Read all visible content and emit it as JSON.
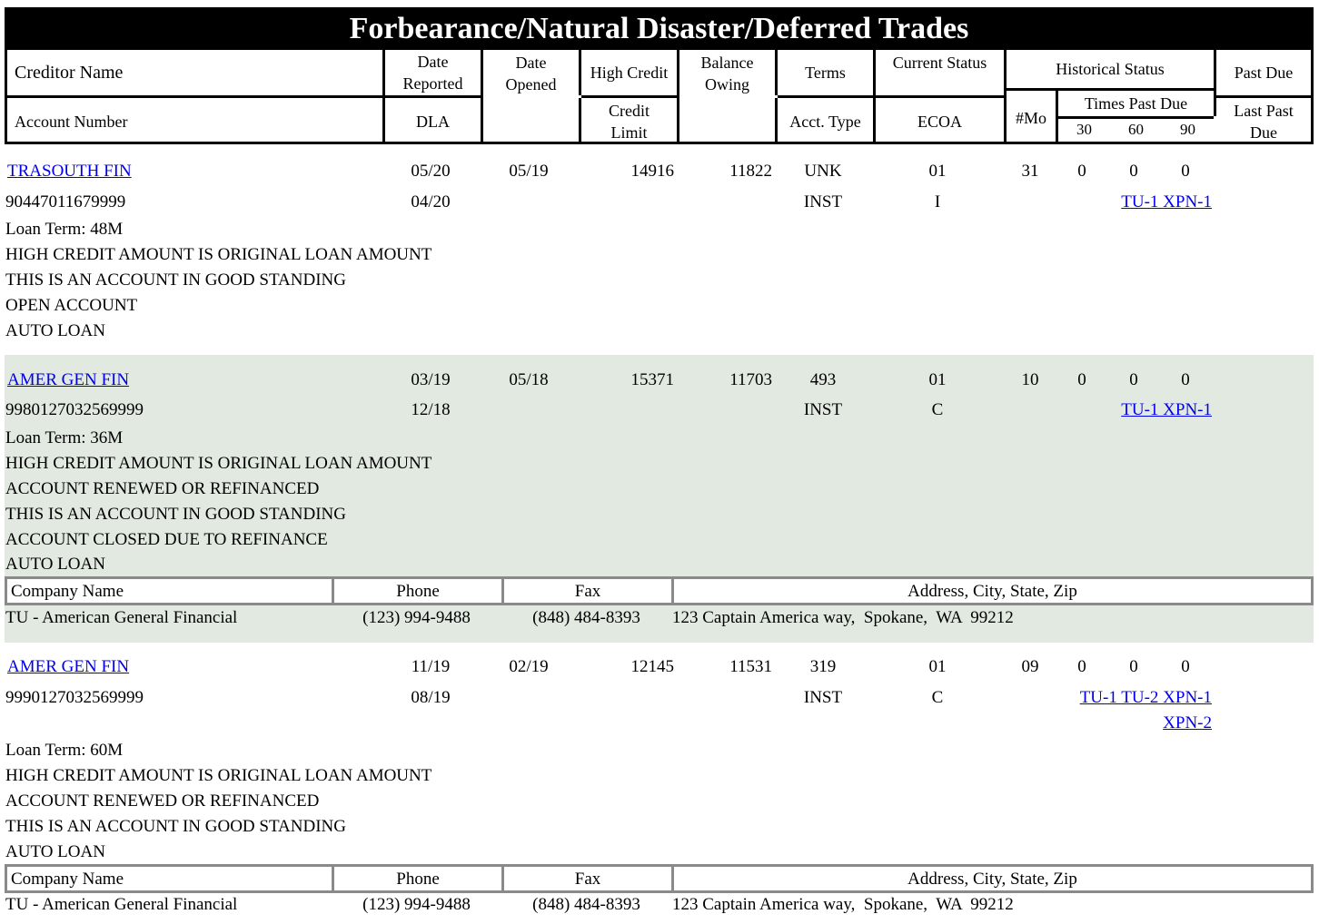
{
  "title": "Forbearance/Natural Disaster/Deferred Trades",
  "header": {
    "creditor_name": "Creditor Name",
    "account_number": "Account Number",
    "date_reported_1": "Date",
    "date_reported_2": "Reported",
    "dla": "DLA",
    "date_opened_1": "Date",
    "date_opened_2": "Opened",
    "high_credit": "High Credit",
    "credit_limit_1": "Credit",
    "credit_limit_2": "Limit",
    "balance_owing_1": "Balance",
    "balance_owing_2": "Owing",
    "terms": "Terms",
    "acct_type": "Acct. Type",
    "current_status": "Current Status",
    "ecoa": "ECOA",
    "historical_status": "Historical Status",
    "num_mo": "#Mo",
    "times_past_due": "Times Past Due",
    "d30": "30",
    "d60": "60",
    "d90": "90",
    "past_due": "Past Due",
    "last_past_1": "Last Past",
    "last_past_2": "Due"
  },
  "company_header": {
    "name": "Company Name",
    "phone": "Phone",
    "fax": "Fax",
    "address": "Address, City, State, Zip"
  },
  "trades": [
    {
      "creditor": "TRASOUTH FIN",
      "account": "90447011679999",
      "date_reported": "05/20",
      "dla": "04/20",
      "date_opened": "05/19",
      "high_credit": "14916",
      "balance": "11822",
      "terms": "UNK",
      "acct_type": "INST",
      "status": "01",
      "ecoa": "I",
      "mo": "31",
      "p30": "0",
      "p60": "0",
      "p90": "0",
      "bureaus": "TU-1 XPN-1",
      "notes": [
        "Loan Term: 48M",
        "HIGH CREDIT AMOUNT IS ORIGINAL LOAN AMOUNT",
        "THIS IS AN ACCOUNT IN GOOD STANDING",
        "OPEN ACCOUNT",
        "AUTO LOAN"
      ]
    },
    {
      "creditor": "AMER GEN FIN",
      "account": "9980127032569999",
      "date_reported": "03/19",
      "dla": "12/18",
      "date_opened": "05/18",
      "high_credit": "15371",
      "balance": "11703",
      "terms": "493",
      "acct_type": "INST",
      "status": "01",
      "ecoa": "C",
      "mo": "10",
      "p30": "0",
      "p60": "0",
      "p90": "0",
      "bureaus": "TU-1 XPN-1",
      "notes": [
        "Loan Term: 36M",
        "HIGH CREDIT AMOUNT IS ORIGINAL LOAN AMOUNT",
        "ACCOUNT RENEWED OR REFINANCED",
        "THIS IS AN ACCOUNT IN GOOD STANDING",
        "ACCOUNT CLOSED DUE TO REFINANCE",
        "AUTO LOAN"
      ],
      "company": {
        "name": "TU - American General Financial",
        "phone": "(123) 994-9488",
        "fax": "(848) 484-8393",
        "address": "123 Captain America way,  Spokane,  WA  99212"
      }
    },
    {
      "creditor": "AMER GEN FIN",
      "account": "9990127032569999",
      "date_reported": "11/19",
      "dla": "08/19",
      "date_opened": "02/19",
      "high_credit": "12145",
      "balance": "11531",
      "terms": "319",
      "acct_type": "INST",
      "status": "01",
      "ecoa": "C",
      "mo": "09",
      "p30": "0",
      "p60": "0",
      "p90": "0",
      "bureaus": "TU-1 TU-2 XPN-1",
      "bureaus_2": "XPN-2",
      "notes": [
        "Loan Term: 60M",
        "HIGH CREDIT AMOUNT IS ORIGINAL LOAN AMOUNT",
        "ACCOUNT RENEWED OR REFINANCED",
        "THIS IS AN ACCOUNT IN GOOD STANDING",
        "AUTO LOAN"
      ],
      "company": {
        "name": "TU - American General Financial",
        "phone": "(123) 994-9488",
        "fax": "(848) 484-8393",
        "address": "123 Captain America way,  Spokane,  WA  99212"
      }
    }
  ]
}
